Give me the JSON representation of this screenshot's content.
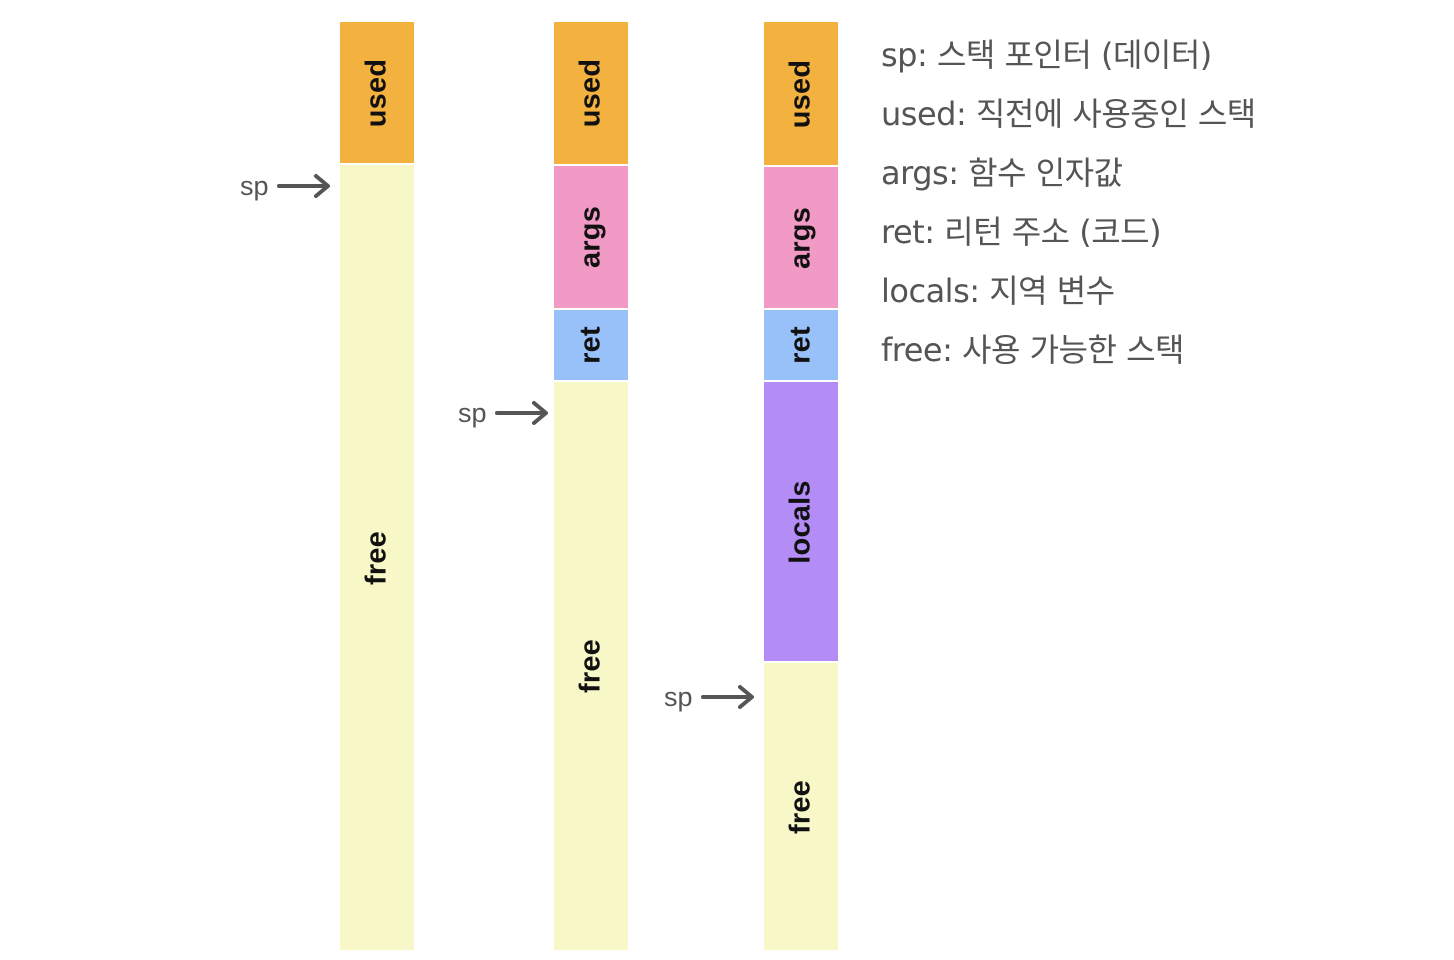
{
  "colors": {
    "used": "#f3b13f",
    "args": "#f19ac6",
    "ret": "#98c1f9",
    "locals": "#b38cf6",
    "free": "#f7f7c8",
    "pointer": "#555555"
  },
  "stacks": [
    {
      "segments": [
        {
          "kind": "used",
          "label": "used"
        },
        {
          "kind": "free",
          "label": "free"
        }
      ],
      "pointer_label": "sp"
    },
    {
      "segments": [
        {
          "kind": "used",
          "label": "used"
        },
        {
          "kind": "args",
          "label": "args"
        },
        {
          "kind": "ret",
          "label": "ret"
        },
        {
          "kind": "free",
          "label": "free"
        }
      ],
      "pointer_label": "sp"
    },
    {
      "segments": [
        {
          "kind": "used",
          "label": "used"
        },
        {
          "kind": "args",
          "label": "args"
        },
        {
          "kind": "ret",
          "label": "ret"
        },
        {
          "kind": "locals",
          "label": "locals"
        },
        {
          "kind": "free",
          "label": "free"
        }
      ],
      "pointer_label": "sp"
    }
  ],
  "legend": [
    "sp: 스택 포인터 (데이터)",
    "used: 직전에 사용중인 스택",
    "args: 함수 인자값",
    "ret: 리턴 주소 (코드)",
    "locals: 지역 변수",
    "free: 사용 가능한 스택"
  ]
}
